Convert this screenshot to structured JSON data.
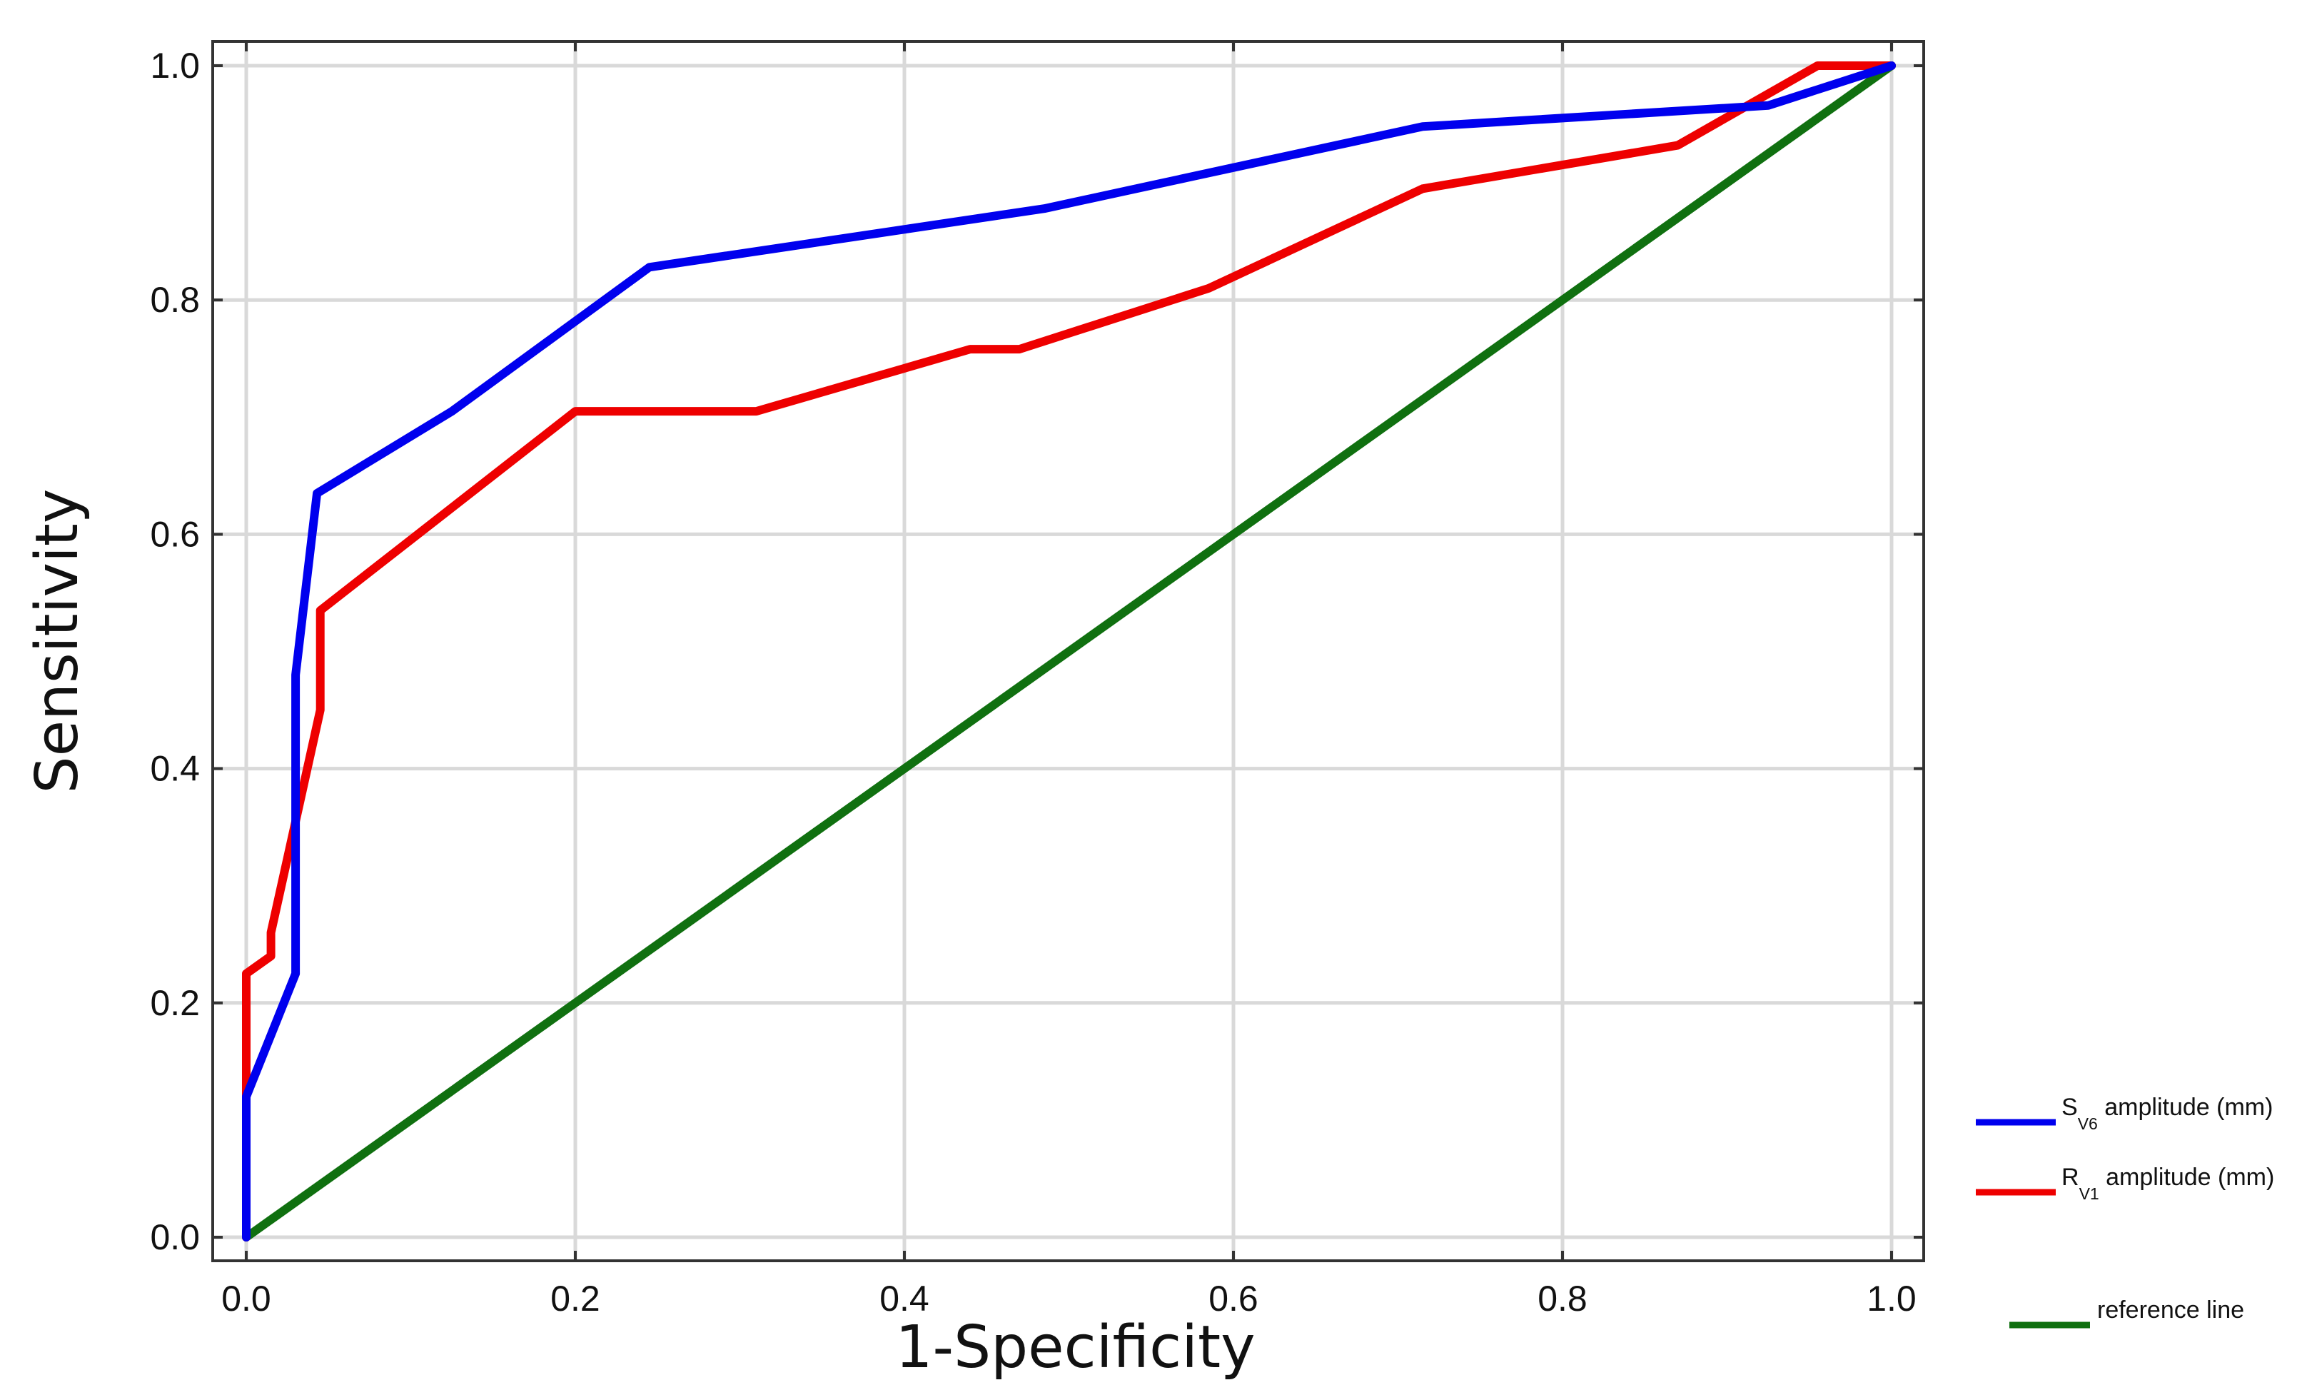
{
  "chart_data": {
    "type": "line",
    "xlabel": "1-Specificity",
    "ylabel": "Sensitivity",
    "xlim": [
      0.0,
      1.0
    ],
    "ylim": [
      0.0,
      1.0
    ],
    "x_ticks": [
      "0.0",
      "0.2",
      "0.4",
      "0.6",
      "0.8",
      "1.0"
    ],
    "y_ticks": [
      "0.0",
      "0.2",
      "0.4",
      "0.6",
      "0.8",
      "1.0"
    ],
    "grid": true,
    "legend_position": "right",
    "series": [
      {
        "legend_main": "S",
        "legend_sub": "V6",
        "legend_rest": " amplitude (mm)",
        "color": "#0000ee",
        "points": [
          [
            0.0,
            0.0
          ],
          [
            0.0,
            0.12
          ],
          [
            0.03,
            0.225
          ],
          [
            0.03,
            0.48
          ],
          [
            0.043,
            0.635
          ],
          [
            0.125,
            0.705
          ],
          [
            0.245,
            0.828
          ],
          [
            0.485,
            0.878
          ],
          [
            0.715,
            0.948
          ],
          [
            0.925,
            0.966
          ],
          [
            1.0,
            1.0
          ]
        ]
      },
      {
        "legend_main": "R",
        "legend_sub": "V1",
        "legend_rest": " amplitude (mm)",
        "color": "#ee0000",
        "points": [
          [
            0.0,
            0.0
          ],
          [
            0.0,
            0.225
          ],
          [
            0.015,
            0.24
          ],
          [
            0.015,
            0.26
          ],
          [
            0.045,
            0.45
          ],
          [
            0.045,
            0.535
          ],
          [
            0.2,
            0.705
          ],
          [
            0.31,
            0.705
          ],
          [
            0.44,
            0.758
          ],
          [
            0.47,
            0.758
          ],
          [
            0.585,
            0.81
          ],
          [
            0.715,
            0.895
          ],
          [
            0.87,
            0.932
          ],
          [
            0.955,
            1.0
          ],
          [
            1.0,
            1.0
          ]
        ]
      },
      {
        "legend_main": "reference line",
        "legend_sub": "",
        "legend_rest": "",
        "color": "#107010",
        "points": [
          [
            0.0,
            0.0
          ],
          [
            1.0,
            1.0
          ]
        ]
      }
    ]
  }
}
